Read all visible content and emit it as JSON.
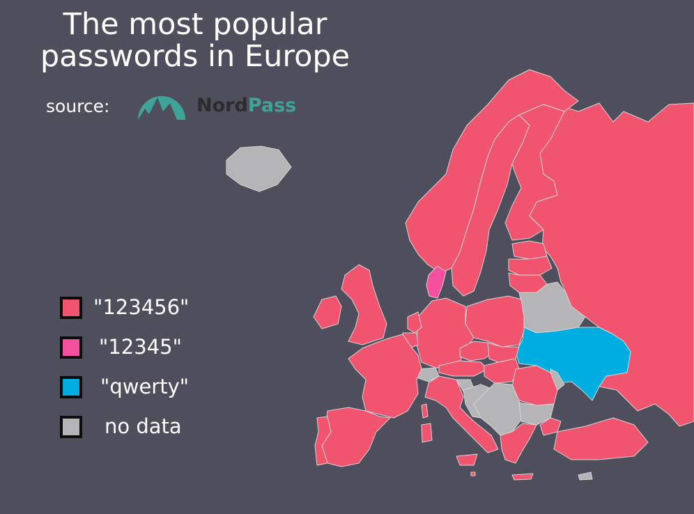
{
  "title": {
    "line1": "The most popular",
    "line2": "passwords in Europe"
  },
  "source": {
    "label": "source:",
    "logo_text_dark": "Nord",
    "logo_text_teal": "Pass",
    "logo_icon": "mountain-logo-icon"
  },
  "colors": {
    "background": "#4f4e5c",
    "p123456": "#f1546f",
    "p12345": "#f4509f",
    "qwerty": "#00ade0",
    "nodata": "#b5b5b7",
    "border": "#d7d7d7"
  },
  "legend": [
    {
      "label": "\"123456\"",
      "key": "p123456"
    },
    {
      "label": "\"12345\"",
      "key": "p12345"
    },
    {
      "label": "\"qwerty\"",
      "key": "qwerty"
    },
    {
      "label": "no data",
      "key": "nodata"
    }
  ],
  "map": {
    "regions": [
      {
        "name": "Iceland",
        "category": "nodata"
      },
      {
        "name": "Norway",
        "category": "p123456"
      },
      {
        "name": "Sweden",
        "category": "p123456"
      },
      {
        "name": "Finland",
        "category": "p123456"
      },
      {
        "name": "Russia",
        "category": "p123456"
      },
      {
        "name": "Estonia",
        "category": "p123456"
      },
      {
        "name": "Latvia",
        "category": "p123456"
      },
      {
        "name": "Lithuania",
        "category": "p123456"
      },
      {
        "name": "Belarus",
        "category": "nodata"
      },
      {
        "name": "Ukraine",
        "category": "qwerty"
      },
      {
        "name": "Moldova",
        "category": "nodata"
      },
      {
        "name": "Denmark",
        "category": "p12345"
      },
      {
        "name": "United Kingdom",
        "category": "p123456"
      },
      {
        "name": "Ireland",
        "category": "p123456"
      },
      {
        "name": "France",
        "category": "p123456"
      },
      {
        "name": "Spain",
        "category": "p123456"
      },
      {
        "name": "Portugal",
        "category": "p123456"
      },
      {
        "name": "Germany",
        "category": "p123456"
      },
      {
        "name": "Netherlands",
        "category": "p123456"
      },
      {
        "name": "Belgium",
        "category": "p123456"
      },
      {
        "name": "Poland",
        "category": "p123456"
      },
      {
        "name": "Czechia",
        "category": "p123456"
      },
      {
        "name": "Slovakia",
        "category": "p123456"
      },
      {
        "name": "Austria",
        "category": "p123456"
      },
      {
        "name": "Switzerland",
        "category": "nodata"
      },
      {
        "name": "Hungary",
        "category": "p123456"
      },
      {
        "name": "Romania",
        "category": "p123456"
      },
      {
        "name": "Italy",
        "category": "p123456"
      },
      {
        "name": "Slovenia",
        "category": "nodata"
      },
      {
        "name": "Croatia",
        "category": "nodata"
      },
      {
        "name": "Balkans",
        "category": "nodata"
      },
      {
        "name": "Bulgaria",
        "category": "nodata"
      },
      {
        "name": "Greece",
        "category": "p123456"
      },
      {
        "name": "Turkey",
        "category": "p123456"
      },
      {
        "name": "Cyprus",
        "category": "nodata"
      },
      {
        "name": "Corsica",
        "category": "p123456"
      },
      {
        "name": "Sardinia",
        "category": "p123456"
      },
      {
        "name": "Sicily",
        "category": "p123456"
      },
      {
        "name": "Crete",
        "category": "p123456"
      },
      {
        "name": "Malta",
        "category": "p123456"
      }
    ]
  }
}
